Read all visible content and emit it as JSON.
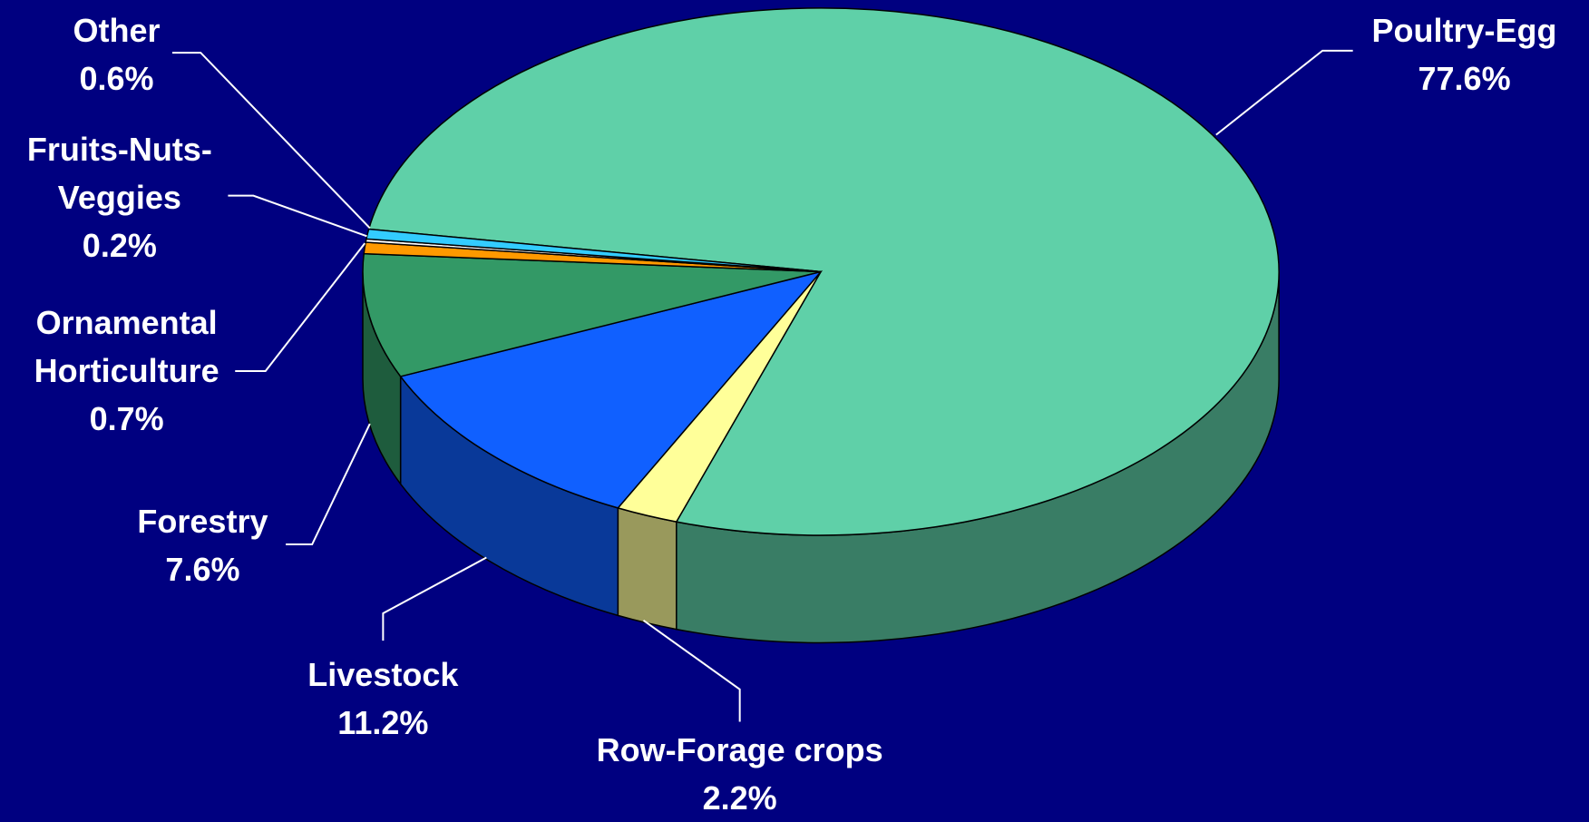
{
  "chart_data": {
    "type": "pie3d",
    "categories": [
      "Poultry-Egg",
      "Row-Forage crops",
      "Livestock",
      "Forestry",
      "Ornamental Horticulture",
      "Fruits-Nuts-Veggies",
      "Other"
    ],
    "values": [
      77.6,
      2.2,
      11.2,
      7.6,
      0.7,
      0.2,
      0.6
    ],
    "value_labels": [
      "77.6%",
      "2.2%",
      "11.2%",
      "7.6%",
      "0.7%",
      "0.2%",
      "0.6%"
    ],
    "colors": [
      "#5fd0a8",
      "#ffff99",
      "#1060ff",
      "#339966",
      "#ff9900",
      "#ffffff",
      "#33ccff"
    ]
  }
}
